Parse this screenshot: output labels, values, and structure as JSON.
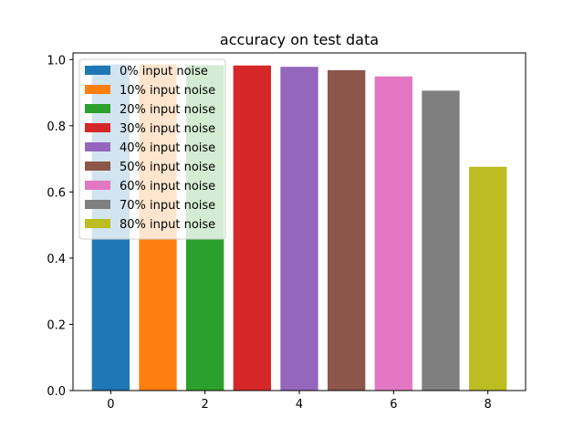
{
  "chart_data": {
    "type": "bar",
    "title": "accuracy on test data",
    "xlabel": "",
    "ylabel": "",
    "xlim": [
      -0.8,
      8.8
    ],
    "ylim": [
      0,
      1.02
    ],
    "xticks": [
      0,
      2,
      4,
      6,
      8
    ],
    "yticks": [
      0.0,
      0.2,
      0.4,
      0.6,
      0.8,
      1.0
    ],
    "xtick_labels": [
      "0",
      "2",
      "4",
      "6",
      "8"
    ],
    "ytick_labels": [
      "0.0",
      "0.2",
      "0.4",
      "0.6",
      "0.8",
      "1.0"
    ],
    "bar_width": 0.8,
    "grid": false,
    "legend_position": "upper-left",
    "series": [
      {
        "name": "0% input noise",
        "x": 0,
        "value": 0.985,
        "color": "#1f77b4"
      },
      {
        "name": "10% input noise",
        "x": 1,
        "value": 0.985,
        "color": "#ff7f0e"
      },
      {
        "name": "20% input noise",
        "x": 2,
        "value": 0.983,
        "color": "#2ca02c"
      },
      {
        "name": "30% input noise",
        "x": 3,
        "value": 0.982,
        "color": "#d62728"
      },
      {
        "name": "40% input noise",
        "x": 4,
        "value": 0.978,
        "color": "#9467bd"
      },
      {
        "name": "50% input noise",
        "x": 5,
        "value": 0.968,
        "color": "#8c564b"
      },
      {
        "name": "60% input noise",
        "x": 6,
        "value": 0.949,
        "color": "#e377c2"
      },
      {
        "name": "70% input noise",
        "x": 7,
        "value": 0.906,
        "color": "#7f7f7f"
      },
      {
        "name": "80% input noise",
        "x": 8,
        "value": 0.676,
        "color": "#bcbd22"
      }
    ]
  }
}
